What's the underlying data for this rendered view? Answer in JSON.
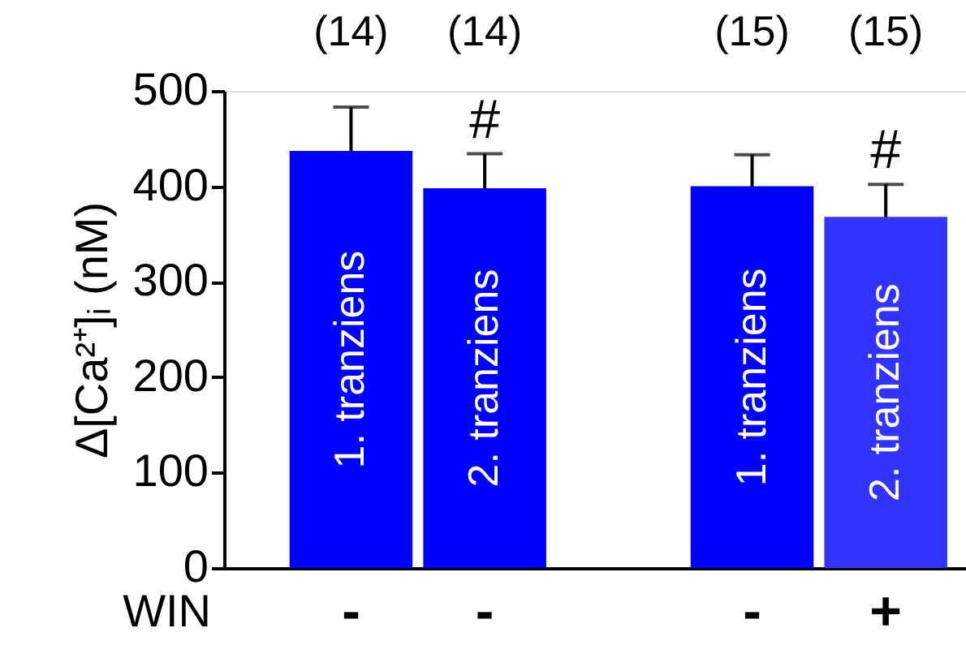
{
  "chart_data": {
    "type": "bar",
    "categories": [
      "-",
      "-",
      "-",
      "+"
    ],
    "xlabel": "WIN",
    "ylabel": "Δ[Ca²⁺]ᵢ (nM)",
    "values": [
      437,
      398,
      400,
      368
    ],
    "errors": [
      46,
      36,
      33,
      34
    ],
    "colors": [
      "#0000ff",
      "#0000ff",
      "#0000ff",
      "#3333ff"
    ],
    "ylim": [
      0,
      500
    ],
    "yticks": [
      0,
      100,
      200,
      300,
      400,
      500
    ],
    "grid": false,
    "annotations": [
      "(14)",
      "(14)",
      "(15)",
      "(15)",
      "#",
      "#",
      "1. tranziens",
      "2. tranziens",
      "1. tranziens",
      "2. tranziens"
    ]
  }
}
